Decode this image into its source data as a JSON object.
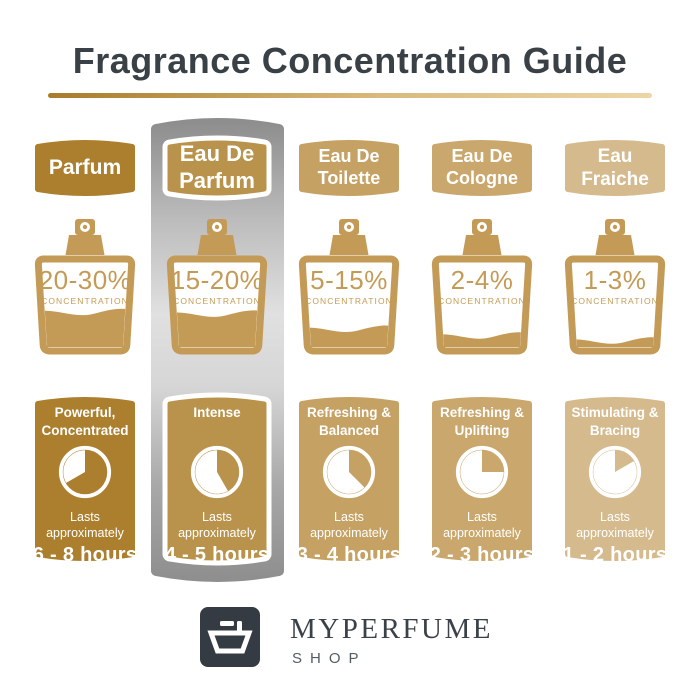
{
  "title": "Fragrance Concentration Guide",
  "palette": {
    "title_color": "#394147",
    "underline_from": "#A87C2B",
    "underline_mid": "#D9B97C",
    "underline_to": "#ECD5A6",
    "bottle_gold": "#C49B56",
    "panel_silver_dark": "#8E8E8E",
    "panel_silver_light": "#E0E0E0",
    "highlight_border": "#FFFFFF",
    "logo_bg": "#343B42",
    "logo_text": "#3A4149",
    "logo_sub": "#565C64"
  },
  "columns": [
    {
      "name": "Parfum",
      "concentration": "20-30%",
      "concentration_label": "CONCENTRATION",
      "fill_percent": 42,
      "character": "Powerful,\nConcentrated",
      "lasts": "Lasts\napproximately",
      "duration": "6 - 8 hours",
      "clock_sweep_deg": 240,
      "color": "#AC7F2E",
      "highlighted": false
    },
    {
      "name": "Eau De\nParfum",
      "concentration": "15-20%",
      "concentration_label": "CONCENTRATION",
      "fill_percent": 40,
      "character": "Intense",
      "lasts": "Lasts\napproximately",
      "duration": "4 - 5 hours",
      "clock_sweep_deg": 150,
      "color": "#B9934C",
      "highlighted": true
    },
    {
      "name": "Eau De\nToilette",
      "concentration": "5-15%",
      "concentration_label": "CONCENTRATION",
      "fill_percent": 22,
      "character": "Refreshing &\nBalanced",
      "lasts": "Lasts\napproximately",
      "duration": "3 - 4 hours",
      "clock_sweep_deg": 135,
      "color": "#C5A164",
      "highlighted": false
    },
    {
      "name": "Eau De\nCologne",
      "concentration": "2-4%",
      "concentration_label": "CONCENTRATION",
      "fill_percent": 14,
      "character": "Refreshing &\nUplifting",
      "lasts": "Lasts\napproximately",
      "duration": "2 - 3 hours",
      "clock_sweep_deg": 90,
      "color": "#CAA76D",
      "highlighted": false
    },
    {
      "name": "Eau\nFraiche",
      "concentration": "1-3%",
      "concentration_label": "CONCENTRATION",
      "fill_percent": 8,
      "character": "Stimulating &\nBracing",
      "lasts": "Lasts\napproximately",
      "duration": "1 - 2 hours",
      "clock_sweep_deg": 60,
      "color": "#D5BA8D",
      "highlighted": false
    }
  ],
  "brand": {
    "name": "MYPERFUME",
    "sub": "SHOP"
  }
}
